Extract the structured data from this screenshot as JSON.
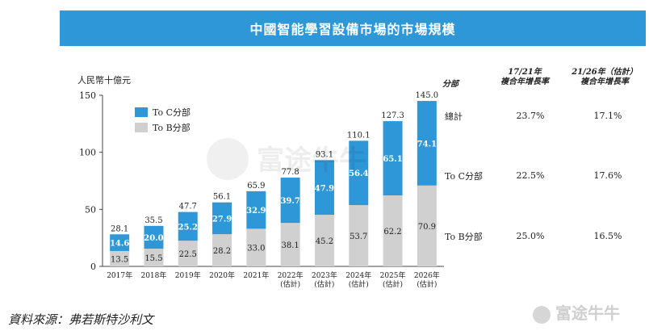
{
  "title": "中國智能學習設備市場的市場規模",
  "source": "資料來源：弗若斯特沙利文",
  "watermark": "富途牛牛",
  "colors": {
    "toc": "#2e97d8",
    "tob": "#d0d0d0",
    "title_bg": "#2e97d8"
  },
  "chart_data": {
    "type": "bar",
    "stacked": true,
    "title": "中國智能學習設備市場的市場規模",
    "ylabel": "人民幣十億元",
    "ylim": [
      0,
      150
    ],
    "yticks": [
      0,
      50,
      100,
      150
    ],
    "categories": [
      "2017年",
      "2018年",
      "2019年",
      "2020年",
      "2021年",
      "2022年\n(估計)",
      "2023年\n(估計)",
      "2024年\n(估計)",
      "2025年\n(估計)",
      "2026年\n(估計)"
    ],
    "series": [
      {
        "name": "To B分部",
        "values": [
          13.5,
          15.5,
          22.5,
          28.2,
          33.0,
          38.1,
          45.2,
          53.7,
          62.2,
          70.9
        ]
      },
      {
        "name": "To C分部",
        "values": [
          14.6,
          20.0,
          25.2,
          27.9,
          32.9,
          39.7,
          47.9,
          56.4,
          65.1,
          74.1
        ]
      }
    ],
    "totals": [
      28.1,
      35.5,
      47.7,
      56.1,
      65.9,
      77.8,
      93.1,
      110.1,
      127.3,
      145.0
    ],
    "legend_position": "top-left",
    "grid": false
  },
  "table": {
    "header_segment": "分部",
    "header_col1": [
      "17/21年",
      "複合年增長率"
    ],
    "header_col2": [
      "21/26年（估計）",
      "複合年增長率"
    ],
    "rows": [
      {
        "label": "總計",
        "v1": "23.7%",
        "v2": "17.1%"
      },
      {
        "label": "To C分部",
        "v1": "22.5%",
        "v2": "17.6%"
      },
      {
        "label": "To B分部",
        "v1": "25.0%",
        "v2": "16.5%"
      }
    ]
  }
}
